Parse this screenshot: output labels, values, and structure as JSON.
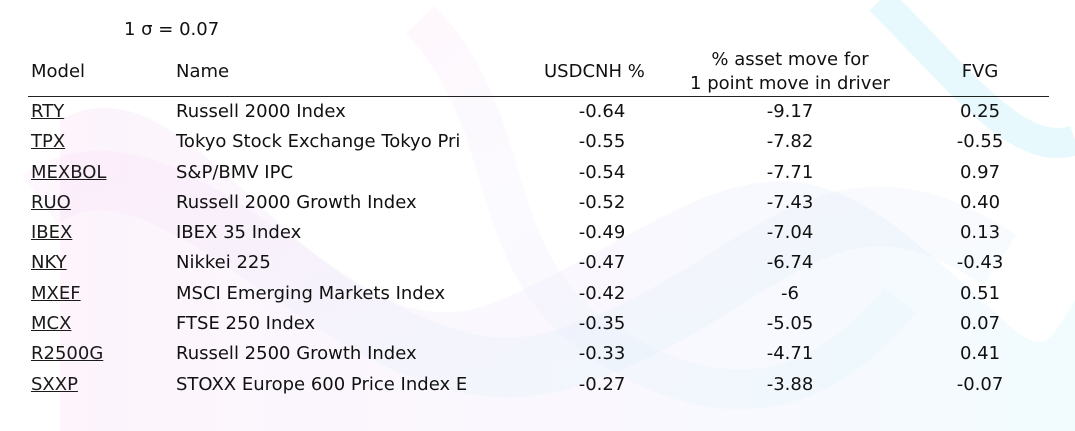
{
  "sigma_label": "1 σ = 0.07",
  "headers": {
    "model": "Model",
    "name": "Name",
    "usdcnh": "USDCNH  %",
    "move_line1": "% asset move for",
    "move_line2": "1 point move in driver",
    "fvg": "FVG"
  },
  "rows": [
    {
      "model": "RTY",
      "name": "Russell 2000 Index",
      "usdcnh": "-0.64",
      "move": "-9.17",
      "fvg": "0.25"
    },
    {
      "model": "TPX",
      "name": "Tokyo Stock Exchange Tokyo Pri",
      "usdcnh": "-0.55",
      "move": "-7.82",
      "fvg": "-0.55"
    },
    {
      "model": "MEXBOL",
      "name": "S&P/BMV IPC",
      "usdcnh": "-0.54",
      "move": "-7.71",
      "fvg": "0.97"
    },
    {
      "model": "RUO",
      "name": "Russell 2000 Growth Index",
      "usdcnh": "-0.52",
      "move": "-7.43",
      "fvg": "0.40"
    },
    {
      "model": "IBEX",
      "name": "IBEX 35 Index",
      "usdcnh": "-0.49",
      "move": "-7.04",
      "fvg": "0.13"
    },
    {
      "model": "NKY",
      "name": "Nikkei 225",
      "usdcnh": "-0.47",
      "move": "-6.74",
      "fvg": "-0.43"
    },
    {
      "model": "MXEF",
      "name": "MSCI Emerging Markets Index",
      "usdcnh": "-0.42",
      "move": "-6",
      "fvg": "0.51"
    },
    {
      "model": "MCX",
      "name": "FTSE 250 Index",
      "usdcnh": "-0.35",
      "move": "-5.05",
      "fvg": "0.07"
    },
    {
      "model": "R2500G",
      "name": "Russell 2500 Growth Index",
      "usdcnh": "-0.33",
      "move": "-4.71",
      "fvg": "0.41"
    },
    {
      "model": "SXXP",
      "name": "STOXX Europe 600 Price Index E",
      "usdcnh": "-0.27",
      "move": "-3.88",
      "fvg": "-0.07"
    }
  ]
}
